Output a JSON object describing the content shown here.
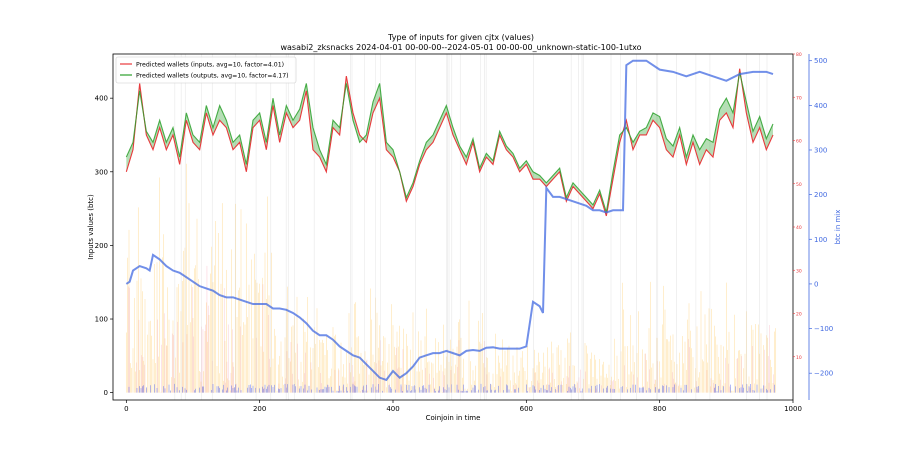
{
  "chart_data": {
    "type": "line",
    "title": "Type of inputs for given cjtx (values)",
    "subtitle": "wasabi2_zksnacks 2024-04-01 00-00-00--2024-05-01 00-00-00_unknown-static-100-1utxo",
    "xlabel": "Coinjoin in time",
    "ylabel_left": "Inputs values (btc)",
    "ylabel_right": "btc in mix",
    "xlim": [
      -20,
      1000
    ],
    "ylim_left": [
      -10,
      460
    ],
    "ylim_mid": [
      0,
      80
    ],
    "ylim_right": [
      -260,
      515
    ],
    "x_ticks": [
      "0",
      "200",
      "400",
      "600",
      "800",
      "1000"
    ],
    "y_ticks_left": [
      "0",
      "100",
      "200",
      "300",
      "400"
    ],
    "y_ticks_mid": [
      "10",
      "20",
      "30",
      "40",
      "50",
      "60",
      "70",
      "80"
    ],
    "y_ticks_right": [
      "−200",
      "−100",
      "0",
      "100",
      "200",
      "300",
      "400",
      "500"
    ],
    "legend_position": "top-left",
    "colors": {
      "inputs": "#e8393c",
      "outputs": "#2ca02c",
      "fill": "#2ca02c",
      "mix": "#4169e1",
      "bars_yellow": "#ffd27a",
      "bars_pink": "#f7a8b8",
      "bars_blue": "#4b5cf0",
      "grid": "#cccccc"
    },
    "series": [
      {
        "name": "Predicted wallets (inputs, avg=10, factor=4.01)",
        "axis": "left",
        "x": [
          0,
          10,
          20,
          30,
          40,
          50,
          60,
          70,
          80,
          90,
          100,
          110,
          120,
          130,
          140,
          150,
          160,
          170,
          180,
          190,
          200,
          210,
          220,
          230,
          240,
          250,
          260,
          270,
          280,
          290,
          300,
          310,
          320,
          330,
          340,
          350,
          360,
          370,
          380,
          390,
          400,
          410,
          420,
          430,
          440,
          450,
          460,
          470,
          480,
          490,
          500,
          510,
          520,
          530,
          540,
          550,
          560,
          570,
          580,
          590,
          600,
          610,
          620,
          630,
          640,
          650,
          660,
          670,
          680,
          690,
          700,
          710,
          720,
          730,
          740,
          750,
          760,
          770,
          780,
          790,
          800,
          810,
          820,
          830,
          840,
          850,
          860,
          870,
          880,
          890,
          900,
          910,
          920,
          930,
          940,
          950,
          960,
          970
        ],
        "y": [
          300,
          330,
          420,
          350,
          330,
          360,
          330,
          350,
          310,
          370,
          340,
          330,
          380,
          350,
          370,
          360,
          330,
          340,
          300,
          360,
          370,
          330,
          390,
          340,
          380,
          360,
          370,
          410,
          330,
          320,
          300,
          360,
          350,
          430,
          380,
          350,
          340,
          380,
          400,
          330,
          320,
          300,
          260,
          280,
          310,
          330,
          340,
          360,
          380,
          350,
          330,
          310,
          340,
          300,
          320,
          310,
          350,
          330,
          320,
          300,
          310,
          290,
          290,
          280,
          290,
          300,
          260,
          280,
          270,
          260,
          250,
          270,
          240,
          290,
          340,
          370,
          330,
          350,
          350,
          370,
          360,
          330,
          320,
          350,
          310,
          340,
          310,
          330,
          320,
          370,
          380,
          360,
          440,
          380,
          340,
          360,
          330,
          350
        ]
      },
      {
        "name": "Predicted wallets (outputs, avg=10, factor=4.17)",
        "axis": "left",
        "x": [
          0,
          10,
          20,
          30,
          40,
          50,
          60,
          70,
          80,
          90,
          100,
          110,
          120,
          130,
          140,
          150,
          160,
          170,
          180,
          190,
          200,
          210,
          220,
          230,
          240,
          250,
          260,
          270,
          280,
          290,
          300,
          310,
          320,
          330,
          340,
          350,
          360,
          370,
          380,
          390,
          400,
          410,
          420,
          430,
          440,
          450,
          460,
          470,
          480,
          490,
          500,
          510,
          520,
          530,
          540,
          550,
          560,
          570,
          580,
          590,
          600,
          610,
          620,
          630,
          640,
          650,
          660,
          670,
          680,
          690,
          700,
          710,
          720,
          730,
          740,
          750,
          760,
          770,
          780,
          790,
          800,
          810,
          820,
          830,
          840,
          850,
          860,
          870,
          880,
          890,
          900,
          910,
          920,
          930,
          940,
          950,
          960,
          970
        ],
        "y": [
          320,
          340,
          410,
          355,
          340,
          370,
          340,
          360,
          320,
          380,
          350,
          340,
          390,
          360,
          390,
          370,
          340,
          350,
          310,
          370,
          380,
          340,
          400,
          350,
          390,
          370,
          385,
          420,
          360,
          330,
          310,
          370,
          360,
          420,
          370,
          340,
          350,
          395,
          420,
          340,
          330,
          300,
          265,
          285,
          315,
          340,
          350,
          370,
          390,
          360,
          335,
          320,
          345,
          305,
          325,
          315,
          355,
          335,
          325,
          305,
          315,
          300,
          295,
          285,
          295,
          305,
          265,
          285,
          275,
          265,
          255,
          275,
          245,
          300,
          350,
          360,
          340,
          355,
          360,
          380,
          375,
          345,
          335,
          360,
          320,
          350,
          330,
          345,
          340,
          385,
          400,
          380,
          435,
          395,
          355,
          375,
          345,
          365
        ]
      },
      {
        "name": "",
        "axis": "right",
        "x": [
          0,
          5,
          10,
          20,
          30,
          35,
          40,
          50,
          60,
          70,
          80,
          90,
          100,
          110,
          120,
          130,
          140,
          150,
          160,
          170,
          180,
          190,
          200,
          210,
          220,
          230,
          240,
          250,
          260,
          270,
          280,
          290,
          300,
          310,
          320,
          330,
          340,
          350,
          360,
          370,
          380,
          390,
          400,
          410,
          420,
          430,
          440,
          450,
          460,
          470,
          480,
          490,
          500,
          510,
          520,
          530,
          540,
          550,
          560,
          570,
          580,
          590,
          600,
          610,
          620,
          625,
          630,
          640,
          650,
          660,
          670,
          680,
          690,
          700,
          710,
          720,
          730,
          740,
          745,
          750,
          760,
          780,
          800,
          820,
          840,
          860,
          880,
          900,
          920,
          940,
          960,
          970
        ],
        "y": [
          0,
          5,
          30,
          40,
          35,
          30,
          65,
          55,
          40,
          30,
          25,
          15,
          5,
          -5,
          -10,
          -15,
          -25,
          -30,
          -30,
          -35,
          -40,
          -45,
          -45,
          -45,
          -55,
          -55,
          -58,
          -65,
          -75,
          -88,
          -105,
          -115,
          -115,
          -125,
          -140,
          -150,
          -160,
          -165,
          -180,
          -195,
          -210,
          -215,
          -195,
          -210,
          -200,
          -185,
          -165,
          -160,
          -155,
          -155,
          -150,
          -155,
          -160,
          -150,
          -148,
          -150,
          -143,
          -142,
          -145,
          -145,
          -145,
          -145,
          -140,
          -40,
          -50,
          -65,
          215,
          195,
          195,
          190,
          185,
          180,
          175,
          165,
          165,
          160,
          165,
          165,
          165,
          490,
          500,
          500,
          480,
          475,
          465,
          475,
          465,
          455,
          470,
          475,
          475,
          470
        ]
      }
    ]
  }
}
